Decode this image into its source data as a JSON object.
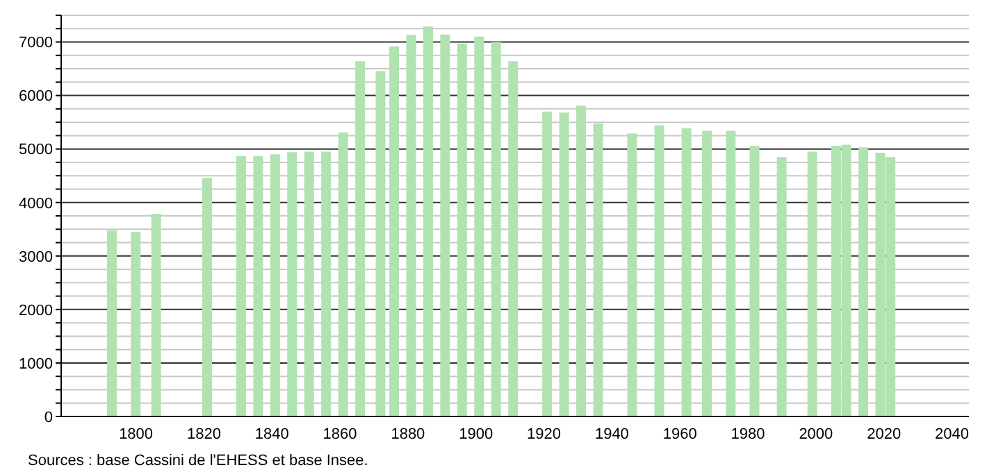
{
  "chart_data": {
    "type": "bar",
    "x": [
      1793,
      1800,
      1806,
      1821,
      1831,
      1836,
      1841,
      1846,
      1851,
      1856,
      1861,
      1866,
      1872,
      1876,
      1881,
      1886,
      1891,
      1896,
      1901,
      1906,
      1911,
      1921,
      1926,
      1931,
      1936,
      1946,
      1954,
      1962,
      1968,
      1975,
      1982,
      1990,
      1999,
      2006,
      2009,
      2014,
      2019,
      2022
    ],
    "values": [
      3480,
      3450,
      3790,
      4460,
      4870,
      4870,
      4900,
      4940,
      4950,
      4950,
      5310,
      6640,
      6460,
      6920,
      7130,
      7290,
      7140,
      6970,
      7100,
      7000,
      6640,
      5700,
      5680,
      5810,
      5480,
      5290,
      5440,
      5390,
      5340,
      5340,
      5060,
      4850,
      4950,
      5060,
      5080,
      5030,
      4930,
      4850
    ],
    "color": "#b0e3b0",
    "xlim": [
      1778,
      2045
    ],
    "xticks": [
      1800,
      1820,
      1840,
      1860,
      1880,
      1900,
      1920,
      1940,
      1960,
      1980,
      2000,
      2020,
      2040
    ],
    "ylim": [
      0,
      7500
    ],
    "yticks": [
      0,
      {
        "value": 250,
        "label": null
      },
      {
        "value": 500,
        "label": null
      },
      {
        "value": 750,
        "label": null
      },
      1000,
      {
        "value": 1250,
        "label": null
      },
      {
        "value": 1500,
        "label": null
      },
      {
        "value": 1750,
        "label": null
      },
      2000,
      {
        "value": 2250,
        "label": null
      },
      {
        "value": 2500,
        "label": null
      },
      {
        "value": 2750,
        "label": null
      },
      3000,
      {
        "value": 3250,
        "label": null
      },
      {
        "value": 3500,
        "label": null
      },
      {
        "value": 3750,
        "label": null
      },
      4000,
      {
        "value": 4250,
        "label": null
      },
      {
        "value": 4500,
        "label": null
      },
      {
        "value": 4750,
        "label": null
      },
      5000,
      {
        "value": 5250,
        "label": null
      },
      {
        "value": 5500,
        "label": null
      },
      {
        "value": 5750,
        "label": null
      },
      6000,
      {
        "value": 6250,
        "label": null
      },
      {
        "value": 6500,
        "label": null
      },
      {
        "value": 6750,
        "label": null
      },
      7000,
      {
        "value": 7250,
        "label": null
      },
      {
        "value": 7500,
        "label": null
      }
    ],
    "grid": "y",
    "annotations": [
      "Sources : base Cassini de l'EHESS et base Insee."
    ]
  }
}
